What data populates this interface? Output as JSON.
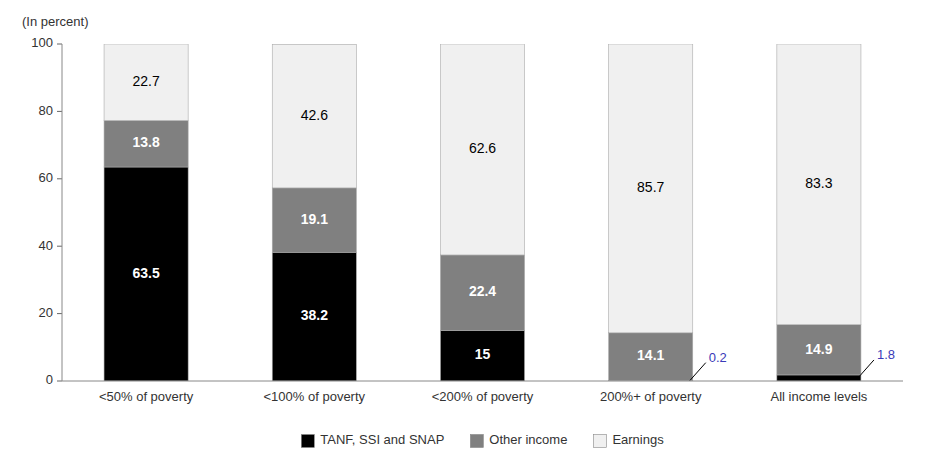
{
  "chart_data": {
    "type": "bar",
    "stacked": true,
    "ylabel": "(In percent)",
    "categories": [
      "<50% of poverty",
      "<100% of poverty",
      "<200% of poverty",
      "200%+ of poverty",
      "All income levels"
    ],
    "series": [
      {
        "name": "TANF, SSI and SNAP",
        "color": "#000000",
        "values": [
          63.5,
          38.2,
          15.0,
          0.2,
          1.8
        ]
      },
      {
        "name": "Other income",
        "color": "#808080",
        "values": [
          13.8,
          19.1,
          22.4,
          14.1,
          14.9
        ]
      },
      {
        "name": "Earnings",
        "color": "#f0f0f0",
        "values": [
          22.7,
          42.6,
          62.6,
          85.7,
          83.3
        ]
      }
    ],
    "ylim": [
      0,
      100
    ],
    "yticks": [
      0,
      20,
      40,
      60,
      80,
      100
    ],
    "grid": false,
    "legend": "bottom",
    "data_labels": true
  }
}
